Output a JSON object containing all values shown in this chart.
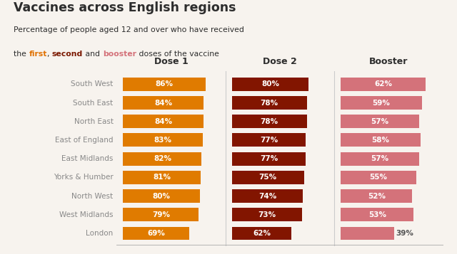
{
  "title": "Vaccines across English regions",
  "subtitle_line1": "Percentage of people aged 12 and over who have received",
  "subtitle_line2_parts": [
    {
      "text": "the ",
      "color": "#2d2d2d"
    },
    {
      "text": "first",
      "color": "#e07000"
    },
    {
      "text": ", ",
      "color": "#2d2d2d"
    },
    {
      "text": "second",
      "color": "#7a1800"
    },
    {
      "text": " and ",
      "color": "#2d2d2d"
    },
    {
      "text": "booster",
      "color": "#d4727a"
    },
    {
      "text": " doses of the vaccine",
      "color": "#2d2d2d"
    }
  ],
  "regions": [
    "South West",
    "South East",
    "North East",
    "East of England",
    "East Midlands",
    "Yorks & Humber",
    "North West",
    "West Midlands",
    "London"
  ],
  "dose1": [
    86,
    84,
    84,
    83,
    82,
    81,
    80,
    79,
    69
  ],
  "dose2": [
    80,
    78,
    78,
    77,
    77,
    75,
    74,
    73,
    62
  ],
  "booster": [
    62,
    59,
    57,
    58,
    57,
    55,
    52,
    53,
    39
  ],
  "dose1_color": "#E07B00",
  "dose2_color": "#821500",
  "booster_color": "#D4727A",
  "col_headers": [
    "Dose 1",
    "Dose 2",
    "Booster"
  ],
  "bar_height": 0.72,
  "bg_color": "#f7f3ee",
  "text_color": "#2d2d2d",
  "region_color": "#888888",
  "label_color_white": "#ffffff",
  "london_booster_label_color": "#555555",
  "dose1_max": 100,
  "dose2_max": 100,
  "booster_max": 70
}
